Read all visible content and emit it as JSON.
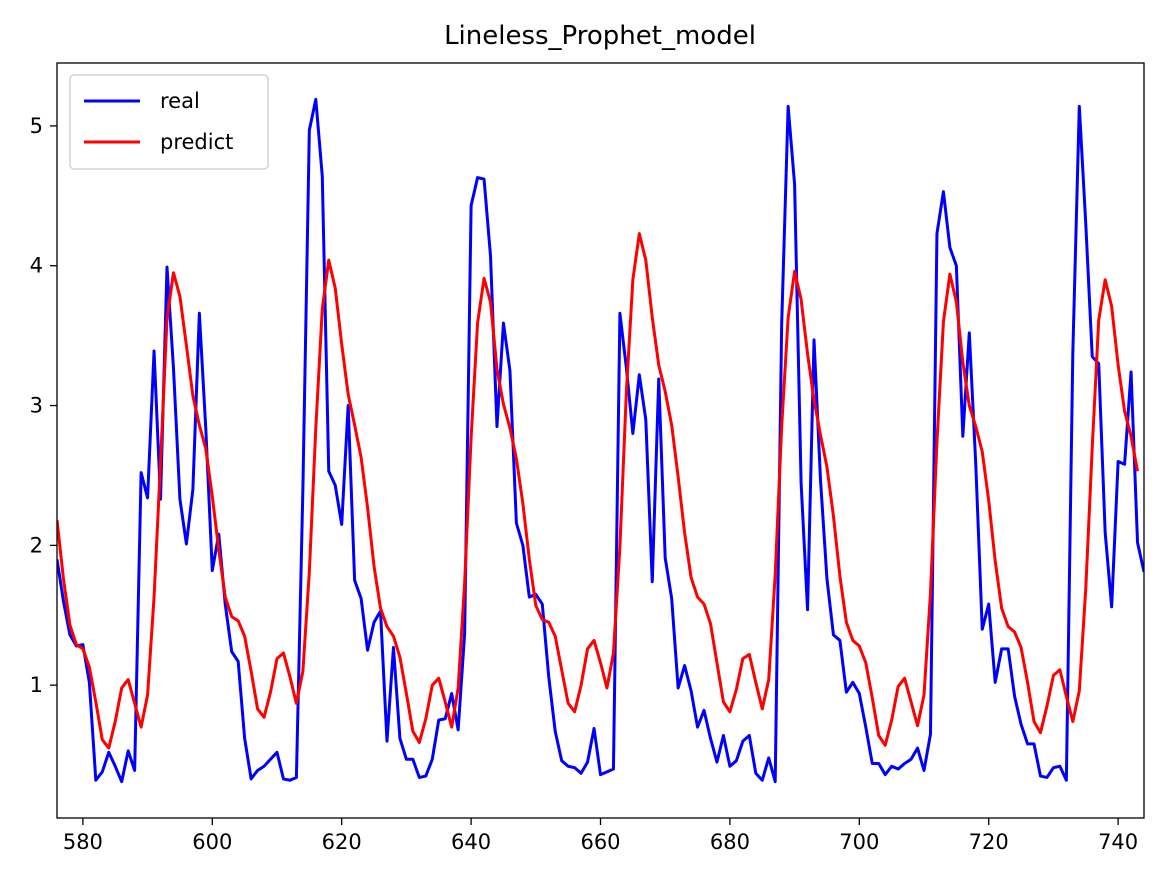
{
  "chart_data": {
    "type": "line",
    "title": "Lineless_Prophet_model",
    "xlabel": "",
    "ylabel": "",
    "xlim": [
      576,
      744
    ],
    "ylim": [
      0.05,
      5.45
    ],
    "xticks": [
      580,
      600,
      620,
      640,
      660,
      680,
      700,
      720,
      740
    ],
    "yticks": [
      1,
      2,
      3,
      4,
      5
    ],
    "grid": false,
    "legend_position": "top-left",
    "x_start": 576,
    "series": [
      {
        "name": "real",
        "color": "#0000ff",
        "values": [
          1.9,
          1.6,
          1.36,
          1.28,
          1.29,
          1.02,
          0.32,
          0.38,
          0.52,
          0.42,
          0.31,
          0.53,
          0.39,
          2.52,
          2.34,
          3.39,
          2.33,
          3.99,
          3.27,
          2.33,
          2.01,
          2.4,
          3.66,
          2.83,
          1.82,
          2.08,
          1.58,
          1.24,
          1.17,
          0.62,
          0.33,
          0.39,
          0.42,
          0.47,
          0.52,
          0.33,
          0.32,
          0.34,
          2.4,
          4.97,
          5.19,
          4.64,
          2.53,
          2.43,
          2.15,
          3.0,
          1.75,
          1.62,
          1.25,
          1.45,
          1.53,
          0.6,
          1.27,
          0.62,
          0.47,
          0.47,
          0.34,
          0.35,
          0.47,
          0.75,
          0.76,
          0.94,
          0.68,
          1.37,
          4.43,
          4.63,
          4.62,
          4.07,
          2.85,
          3.59,
          3.25,
          2.16,
          2.0,
          1.63,
          1.65,
          1.58,
          1.06,
          0.67,
          0.46,
          0.42,
          0.41,
          0.37,
          0.45,
          0.69,
          0.36,
          0.38,
          0.4,
          3.66,
          3.27,
          2.8,
          3.22,
          2.9,
          1.74,
          3.19,
          1.91,
          1.62,
          0.98,
          1.14,
          0.96,
          0.7,
          0.82,
          0.62,
          0.45,
          0.64,
          0.42,
          0.46,
          0.6,
          0.64,
          0.37,
          0.32,
          0.48,
          0.31,
          3.58,
          5.14,
          4.58,
          2.45,
          1.54,
          3.47,
          2.47,
          1.76,
          1.36,
          1.32,
          0.95,
          1.02,
          0.94,
          0.7,
          0.44,
          0.44,
          0.36,
          0.42,
          0.4,
          0.44,
          0.47,
          0.55,
          0.39,
          0.65,
          4.23,
          4.53,
          4.13,
          4.0,
          2.78,
          3.52,
          2.58,
          1.4,
          1.58,
          1.02,
          1.26,
          1.26,
          0.92,
          0.72,
          0.58,
          0.58,
          0.35,
          0.34,
          0.41,
          0.42,
          0.32,
          3.38,
          5.14,
          4.3,
          3.35,
          3.3,
          2.09,
          1.56,
          2.6,
          2.58,
          3.24,
          2.02,
          1.81
        ]
      },
      {
        "name": "predict",
        "color": "#ff0000",
        "values": [
          2.18,
          1.76,
          1.43,
          1.29,
          1.26,
          1.13,
          0.88,
          0.61,
          0.55,
          0.74,
          0.98,
          1.04,
          0.87,
          0.7,
          0.93,
          1.63,
          2.59,
          3.62,
          3.95,
          3.78,
          3.43,
          3.07,
          2.86,
          2.69,
          2.35,
          1.97,
          1.63,
          1.49,
          1.46,
          1.35,
          1.1,
          0.83,
          0.77,
          0.95,
          1.19,
          1.23,
          1.06,
          0.87,
          1.1,
          1.81,
          2.84,
          3.69,
          4.04,
          3.84,
          3.44,
          3.08,
          2.86,
          2.63,
          2.27,
          1.85,
          1.55,
          1.42,
          1.35,
          1.2,
          0.94,
          0.67,
          0.59,
          0.76,
          1.0,
          1.05,
          0.88,
          0.7,
          0.98,
          1.73,
          2.77,
          3.59,
          3.91,
          3.74,
          3.26,
          3.01,
          2.84,
          2.62,
          2.3,
          1.9,
          1.57,
          1.47,
          1.45,
          1.35,
          1.11,
          0.87,
          0.81,
          1.0,
          1.26,
          1.32,
          1.16,
          0.98,
          1.23,
          1.99,
          3.1,
          3.9,
          4.23,
          4.04,
          3.63,
          3.29,
          3.1,
          2.86,
          2.49,
          2.09,
          1.77,
          1.63,
          1.58,
          1.44,
          1.16,
          0.88,
          0.81,
          0.97,
          1.19,
          1.22,
          1.02,
          0.83,
          1.04,
          1.79,
          2.85,
          3.63,
          3.96,
          3.76,
          3.37,
          3.04,
          2.79,
          2.56,
          2.21,
          1.78,
          1.45,
          1.32,
          1.28,
          1.16,
          0.91,
          0.64,
          0.57,
          0.75,
          0.99,
          1.05,
          0.88,
          0.71,
          0.93,
          1.66,
          2.74,
          3.6,
          3.94,
          3.74,
          3.31,
          3.0,
          2.85,
          2.67,
          2.32,
          1.89,
          1.55,
          1.42,
          1.38,
          1.27,
          1.02,
          0.74,
          0.66,
          0.85,
          1.07,
          1.11,
          0.92,
          0.74,
          0.96,
          1.69,
          2.7,
          3.61,
          3.9,
          3.71,
          3.29,
          2.96,
          2.78,
          2.53
        ]
      }
    ]
  }
}
